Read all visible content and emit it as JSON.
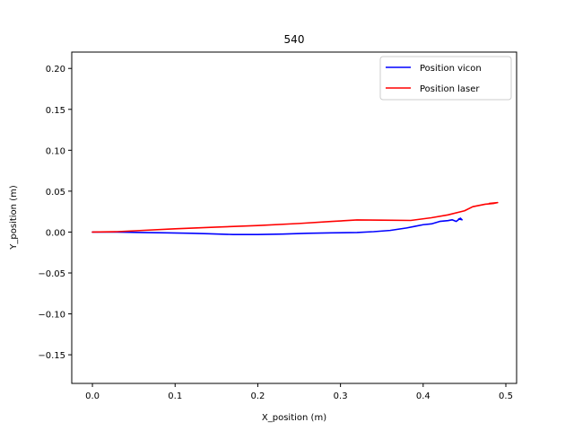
{
  "chart_data": {
    "type": "line",
    "title": "540",
    "xlabel": "X_position (m)",
    "ylabel": "Y_position (m)",
    "xlim": [
      -0.025,
      0.513
    ],
    "ylim": [
      -0.185,
      0.22
    ],
    "xticks": [
      0.0,
      0.1,
      0.2,
      0.3,
      0.4,
      0.5
    ],
    "xtick_labels": [
      "0.0",
      "0.1",
      "0.2",
      "0.3",
      "0.4",
      "0.5"
    ],
    "yticks": [
      -0.15,
      -0.1,
      -0.05,
      0.0,
      0.05,
      0.1,
      0.15,
      0.2
    ],
    "ytick_labels": [
      "−0.15",
      "−0.10",
      "−0.05",
      "0.00",
      "0.05",
      "0.10",
      "0.15",
      "0.20"
    ],
    "grid": false,
    "legend_position": "top-right",
    "series": [
      {
        "name": "Position vicon",
        "color": "#0000ff",
        "points": [
          [
            0.0,
            0.0
          ],
          [
            0.03,
            0.0
          ],
          [
            0.06,
            -0.0005
          ],
          [
            0.09,
            -0.001
          ],
          [
            0.12,
            -0.0015
          ],
          [
            0.14,
            -0.002
          ],
          [
            0.17,
            -0.003
          ],
          [
            0.2,
            -0.003
          ],
          [
            0.23,
            -0.0025
          ],
          [
            0.26,
            -0.0015
          ],
          [
            0.29,
            -0.001
          ],
          [
            0.32,
            -0.0005
          ],
          [
            0.34,
            0.0005
          ],
          [
            0.36,
            0.002
          ],
          [
            0.38,
            0.005
          ],
          [
            0.39,
            0.007
          ],
          [
            0.4,
            0.009
          ],
          [
            0.41,
            0.01
          ],
          [
            0.42,
            0.013
          ],
          [
            0.43,
            0.014
          ],
          [
            0.435,
            0.015
          ],
          [
            0.44,
            0.013
          ],
          [
            0.445,
            0.017
          ],
          [
            0.447,
            0.015
          ],
          [
            0.443,
            0.016
          ]
        ]
      },
      {
        "name": "Position laser",
        "color": "#ff0000",
        "points": [
          [
            0.0,
            0.0
          ],
          [
            0.03,
            0.0005
          ],
          [
            0.06,
            0.002
          ],
          [
            0.1,
            0.004
          ],
          [
            0.15,
            0.006
          ],
          [
            0.2,
            0.008
          ],
          [
            0.25,
            0.0105
          ],
          [
            0.29,
            0.013
          ],
          [
            0.32,
            0.0148
          ],
          [
            0.35,
            0.0145
          ],
          [
            0.385,
            0.0142
          ],
          [
            0.41,
            0.0175
          ],
          [
            0.43,
            0.021
          ],
          [
            0.45,
            0.026
          ],
          [
            0.46,
            0.031
          ],
          [
            0.475,
            0.034
          ],
          [
            0.485,
            0.035
          ],
          [
            0.49,
            0.036
          ],
          [
            0.48,
            0.035
          ]
        ]
      }
    ]
  }
}
